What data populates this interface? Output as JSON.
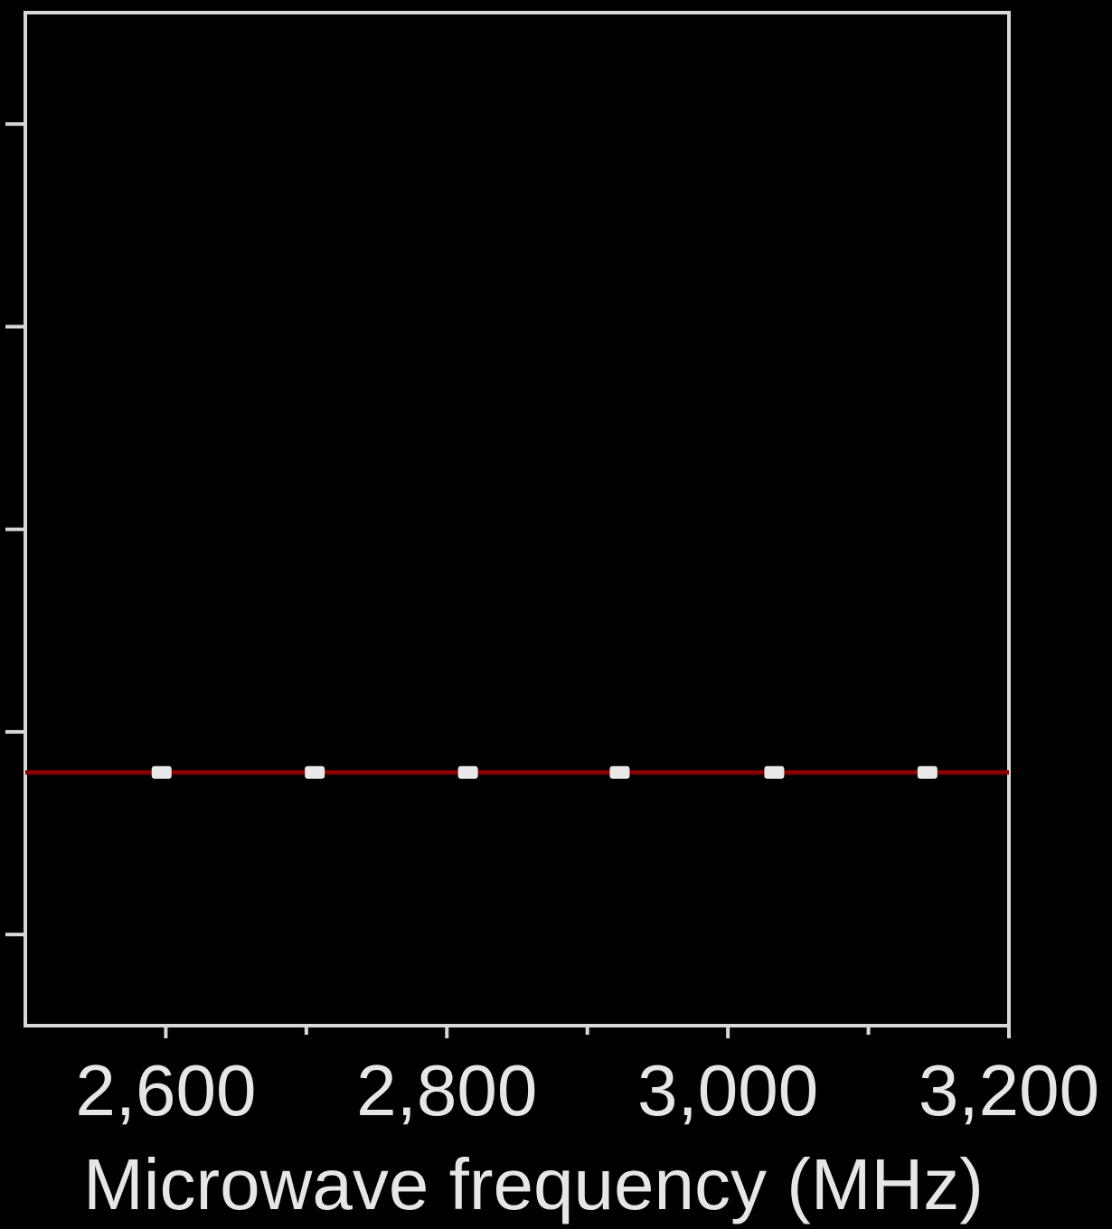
{
  "chart_data": {
    "type": "line",
    "title": "",
    "xlabel": "Microwave frequency (MHz)",
    "ylabel": "",
    "xlim": [
      2500,
      3200
    ],
    "ylim": [
      0,
      5
    ],
    "x_ticks": [
      {
        "value": 2600,
        "label": "2,600"
      },
      {
        "value": 2800,
        "label": "2,800"
      },
      {
        "value": 3000,
        "label": "3,000"
      },
      {
        "value": 3200,
        "label": "3,200"
      }
    ],
    "x_minor_ticks": [
      2700,
      2900,
      3100
    ],
    "y_ticks": [
      0.45,
      1.45,
      2.45,
      3.45,
      4.45
    ],
    "grid": false,
    "colors": {
      "background": "#000000",
      "axes": "#d8d8d8",
      "text": "#e6e6e6",
      "line": "#8b0000",
      "points": "#e8e8e8"
    },
    "series": [
      {
        "x": [
          2500,
          3200
        ],
        "y": [
          1.25,
          1.25
        ],
        "style": "line"
      },
      {
        "x": [
          2597,
          2706,
          2815,
          2923,
          3033,
          3142
        ],
        "y": [
          1.25,
          1.25,
          1.25,
          1.25,
          1.25,
          1.25
        ],
        "style": "markers"
      }
    ]
  }
}
